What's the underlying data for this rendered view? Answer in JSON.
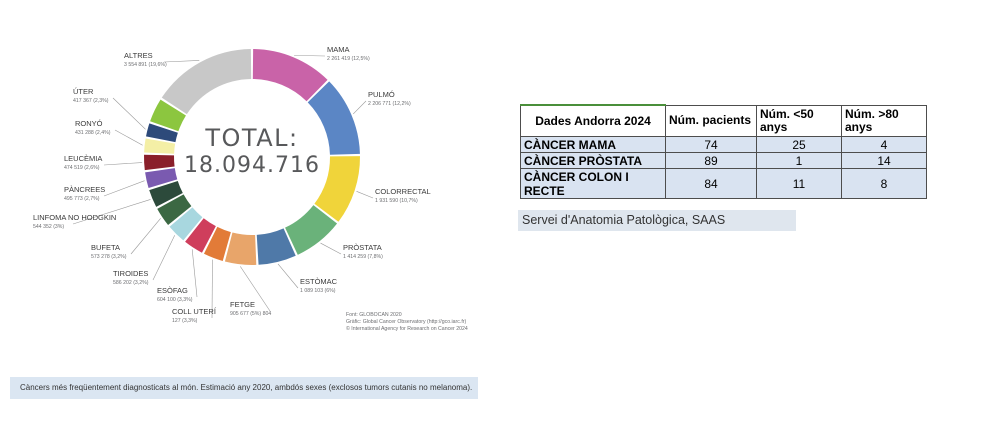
{
  "chart_data": {
    "type": "pie",
    "center_label": "TOTAL:",
    "center_value": "18.094.716",
    "slices": [
      {
        "name": "MAMA",
        "value_text": "2 261 419 (12,5%)",
        "percent": 12.5,
        "color": "#c963a8"
      },
      {
        "name": "PULMÓ",
        "value_text": "2 206 771 (12,2%)",
        "percent": 12.2,
        "color": "#5b86c5"
      },
      {
        "name": "COLORRECTAL",
        "value_text": "1 931 590 (10,7%)",
        "percent": 10.7,
        "color": "#f0d43a"
      },
      {
        "name": "PRÒSTATA",
        "value_text": "1 414 259 (7,8%)",
        "percent": 7.8,
        "color": "#6ab27a"
      },
      {
        "name": "ESTÒMAC",
        "value_text": "1 089 103 (6%)",
        "percent": 6.0,
        "color": "#4f79a8"
      },
      {
        "name": "FETGE",
        "value_text": "905 677 (5%) 804",
        "percent": 5.0,
        "color": "#e8a56a"
      },
      {
        "name": "COLL UTERÍ",
        "value_text": "127 (3,3%)",
        "percent": 3.3,
        "color": "#e27b38"
      },
      {
        "name": "ESÒFAG",
        "value_text": "604 100 (3,3%)",
        "percent": 3.3,
        "color": "#cf3e5c"
      },
      {
        "name": "TIROIDES",
        "value_text": "586 202 (3,2%)",
        "percent": 3.2,
        "color": "#a8d7df"
      },
      {
        "name": "BUFETA",
        "value_text": "573 278 (3,2%)",
        "percent": 3.2,
        "color": "#3b6843"
      },
      {
        "name": "LINFOMA NO HODGKIN",
        "value_text": "544 352 (3%)",
        "percent": 3.0,
        "color": "#2c4a3b"
      },
      {
        "name": "PÀNCREES",
        "value_text": "495 773 (2,7%)",
        "percent": 2.7,
        "color": "#7a5ab0"
      },
      {
        "name": "LEUCÈMIA",
        "value_text": "474 519 (2,6%)",
        "percent": 2.6,
        "color": "#8a1f2a"
      },
      {
        "name": "RONYÓ",
        "value_text": "431 288 (2,4%)",
        "percent": 2.4,
        "color": "#f4efa6"
      },
      {
        "name": "ÚTER",
        "value_text": "417 367 (2,3%)",
        "percent": 2.3,
        "color": "#2d4a7a"
      },
      {
        "name": "ALTRES",
        "value_text": "3 554 891 (19,6%)",
        "percent": 19.6,
        "color": "#8cc63f"
      }
    ],
    "residual_color": "#c8c8c8"
  },
  "credits": [
    "Font: GLOBOCAN 2020",
    "Gràfic: Global Cancer Observatory (http://gco.iarc.fr)",
    "© International Agency for Research on Cancer 2024"
  ],
  "caption": "Càncers més freqüentement diagnosticats al món. Estimació any 2020, ambdós sexes (exclosos tumors cutanis no melanoma).",
  "table": {
    "headers": [
      "Dades Andorra 2024",
      "Núm. pacients",
      "Núm. <50 anys",
      "Núm. >80 anys"
    ],
    "rows": [
      [
        "CÀNCER MAMA",
        "74",
        "25",
        "4"
      ],
      [
        "CÀNCER PRÒSTATA",
        "89",
        "1",
        "14"
      ],
      [
        "CÀNCER COLON I RECTE",
        "84",
        "11",
        "8"
      ]
    ]
  },
  "source": "Servei d'Anatomia Patològica, SAAS"
}
